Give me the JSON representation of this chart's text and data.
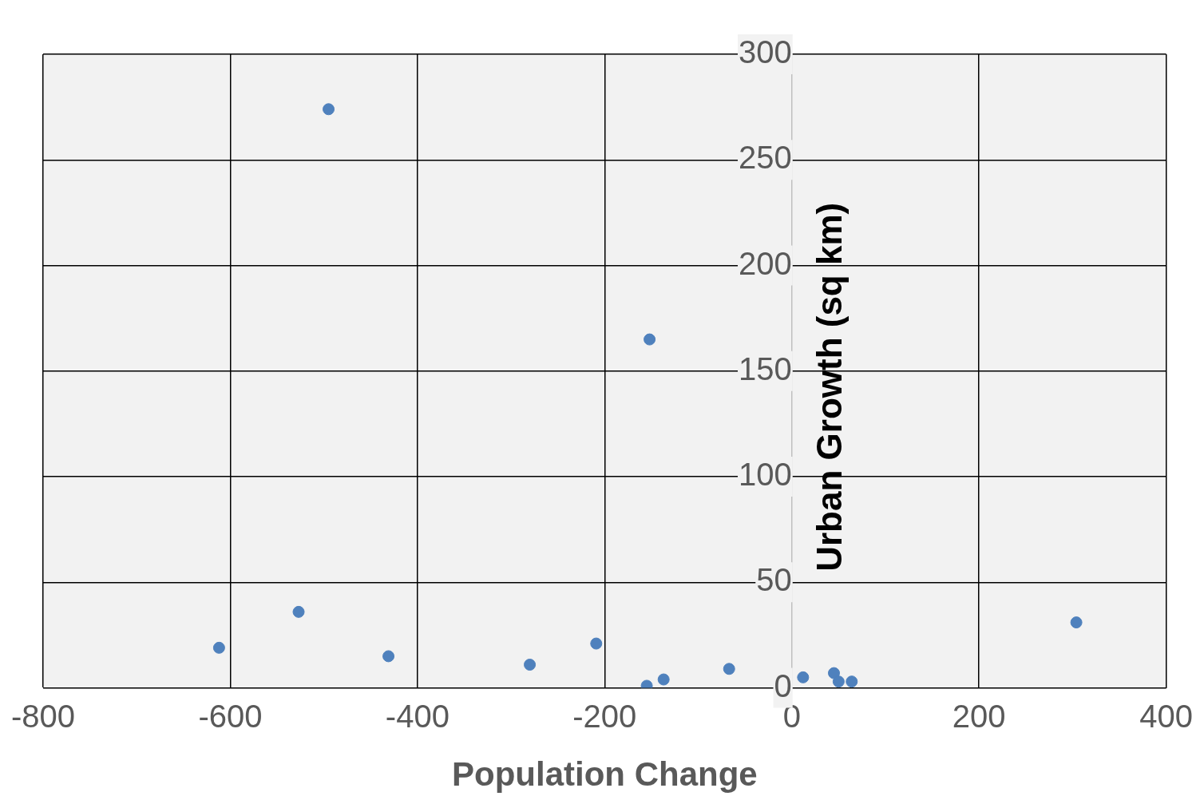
{
  "chart_data": {
    "type": "scatter",
    "xlabel": "Population Change",
    "ylabel": "Urban Growth (sq km)",
    "x": [
      -495,
      -152,
      -612,
      -527,
      -431,
      -280,
      -209,
      -155,
      -137,
      -67,
      12,
      45,
      50,
      64,
      304
    ],
    "series": [
      {
        "color": "#4f81bd",
        "values": [
          274,
          165,
          19,
          36,
          15,
          11,
          21,
          1,
          4,
          9,
          5,
          7,
          3,
          3,
          31
        ]
      }
    ],
    "xlim": [
      -800,
      400
    ],
    "xticks": [
      -800,
      -600,
      -400,
      -200,
      0,
      200,
      400
    ],
    "ylim": [
      0,
      300
    ],
    "yticks": [
      0,
      50,
      100,
      150,
      200,
      250,
      300
    ],
    "grid": true,
    "legend": false,
    "marker": "circle"
  }
}
